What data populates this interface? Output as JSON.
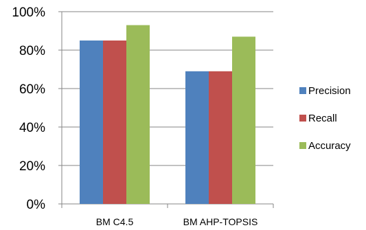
{
  "chart_data": {
    "type": "bar",
    "categories": [
      "BM C4.5",
      "BM AHP-TOPSIS"
    ],
    "series": [
      {
        "name": "Precision",
        "values": [
          85,
          69
        ],
        "color": "#4F81BD"
      },
      {
        "name": "Recall",
        "values": [
          85,
          69
        ],
        "color": "#C0504D"
      },
      {
        "name": "Accuracy",
        "values": [
          93,
          87
        ],
        "color": "#9BBB59"
      }
    ],
    "ylim": [
      0,
      100
    ],
    "yticks": [
      0,
      20,
      40,
      60,
      80,
      100
    ],
    "ytick_labels": [
      "0%",
      "20%",
      "40%",
      "60%",
      "80%",
      "100%"
    ],
    "grid": true,
    "legend_position": "right",
    "title": "",
    "xlabel": "",
    "ylabel": ""
  }
}
